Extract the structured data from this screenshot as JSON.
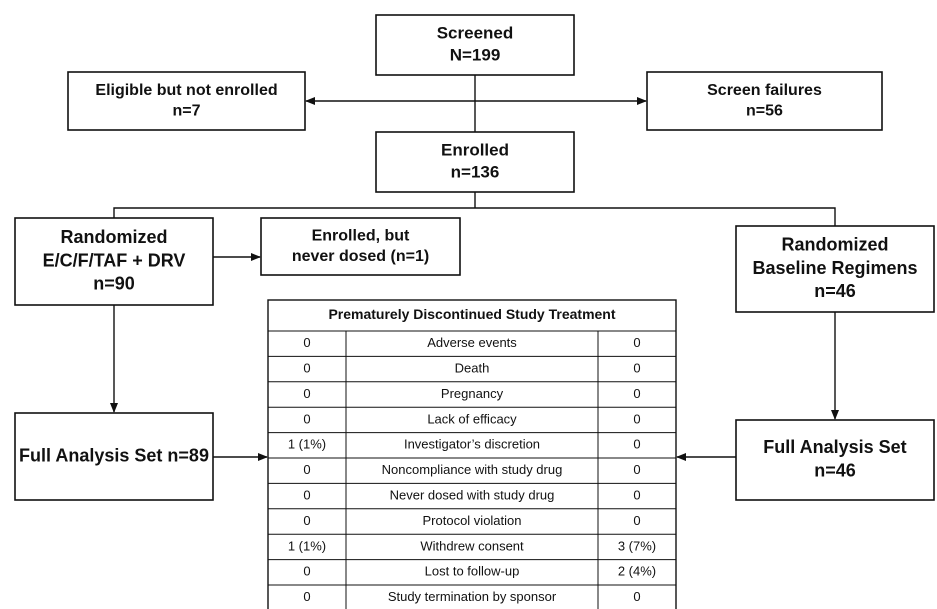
{
  "nodes": [
    {
      "lines": [
        "Screened",
        "N=199"
      ]
    },
    {
      "lines": [
        "Eligible but not enrolled",
        "n=7"
      ]
    },
    {
      "lines": [
        "Screen failures",
        "n=56"
      ]
    },
    {
      "lines": [
        "Enrolled",
        "n=136"
      ]
    },
    {
      "lines": [
        "Randomized",
        "E/C/F/TAF + DRV",
        "n=90"
      ]
    },
    {
      "lines": [
        "Enrolled, but",
        "never dosed (n=1)"
      ]
    },
    {
      "lines": [
        "Randomized",
        "Baseline Regimens",
        "n=46"
      ]
    },
    {
      "lines": [
        "Full Analysis Set n=89"
      ]
    },
    {
      "lines": [
        "Full Analysis Set",
        "n=46"
      ]
    }
  ],
  "table": {
    "title": "Prematurely Discontinued Study Treatment",
    "rows": [
      [
        "0",
        "Adverse events",
        "0"
      ],
      [
        "0",
        "Death",
        "0"
      ],
      [
        "0",
        "Pregnancy",
        "0"
      ],
      [
        "0",
        "Lack of efficacy",
        "0"
      ],
      [
        "1 (1%)",
        "Investigator’s discretion",
        "0"
      ],
      [
        "0",
        "Noncompliance with study drug",
        "0"
      ],
      [
        "0",
        "Never dosed with study drug",
        "0"
      ],
      [
        "0",
        "Protocol violation",
        "0"
      ],
      [
        "1 (1%)",
        "Withdrew consent",
        "3 (7%)"
      ],
      [
        "0",
        "Lost to follow-up",
        "2 (4%)"
      ],
      [
        "0",
        "Study termination by sponsor",
        "0"
      ]
    ]
  }
}
